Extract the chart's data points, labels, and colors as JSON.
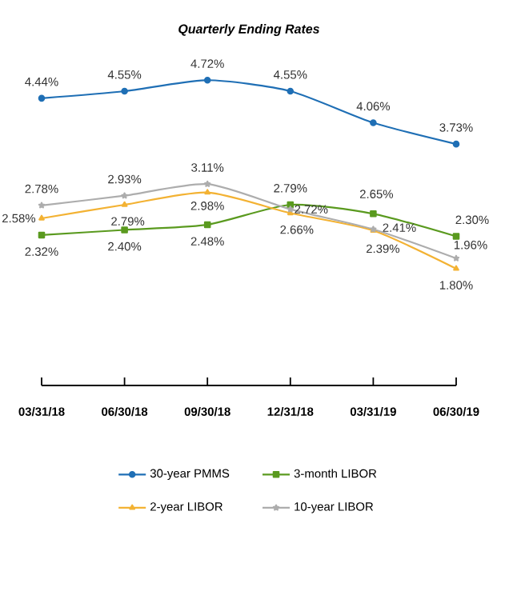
{
  "chart_data": {
    "type": "line",
    "title": "Quarterly Ending Rates",
    "categories": [
      "03/31/18",
      "06/30/18",
      "09/30/18",
      "12/31/18",
      "03/31/19",
      "06/30/19"
    ],
    "tick_labels": "x",
    "grid": false,
    "legend": "bottom",
    "series": [
      {
        "name": "30-year PMMS",
        "color": "#1f6fb5",
        "marker": "circle",
        "values": [
          4.44,
          4.55,
          4.72,
          4.55,
          4.06,
          3.73
        ],
        "value_labels": [
          "4.44%",
          "4.55%",
          "4.72%",
          "4.55%",
          "4.06%",
          "3.73%"
        ]
      },
      {
        "name": "3-month LIBOR",
        "color": "#5a9a1f",
        "marker": "square",
        "values": [
          2.32,
          2.4,
          2.48,
          2.79,
          2.65,
          2.3
        ],
        "value_labels": [
          "2.32%",
          "2.40%",
          "2.48%",
          "2.79%",
          "2.65%",
          "2.30%"
        ]
      },
      {
        "name": "2-year LIBOR",
        "color": "#f3b233",
        "marker": "triangle",
        "values": [
          2.58,
          2.79,
          2.98,
          2.66,
          2.39,
          1.8
        ],
        "value_labels": [
          "2.58%",
          "2.79%",
          "2.98%",
          "2.66%",
          "2.39%",
          "1.80%"
        ]
      },
      {
        "name": "10-year LIBOR",
        "color": "#adadad",
        "marker": "star",
        "values": [
          2.78,
          2.93,
          3.11,
          2.72,
          2.41,
          1.96
        ],
        "value_labels": [
          "2.78%",
          "2.93%",
          "3.11%",
          "2.72%",
          "2.41%",
          "1.96%"
        ]
      }
    ]
  }
}
